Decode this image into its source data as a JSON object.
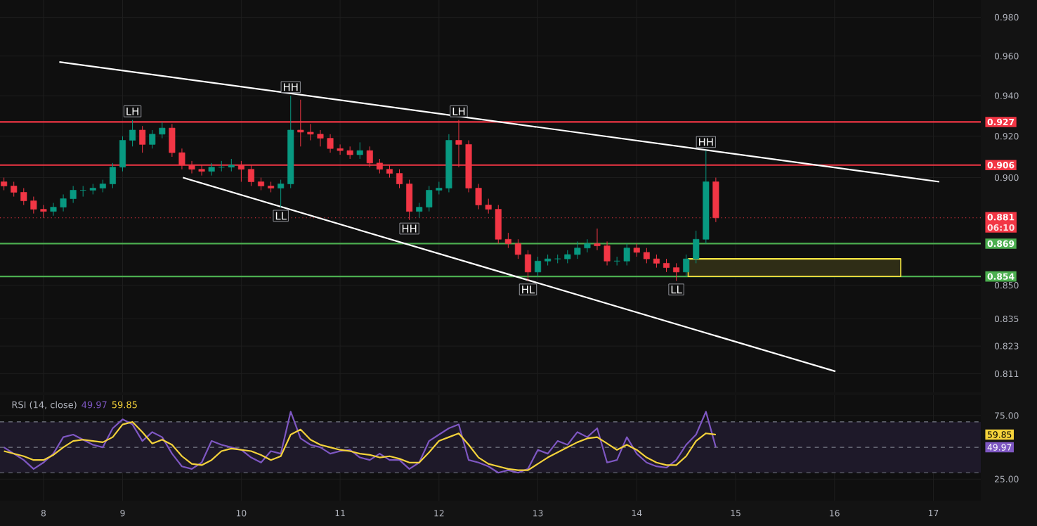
{
  "chart_data": [
    {
      "type": "candlestick",
      "x": [
        7.6,
        7.7,
        7.8,
        7.9,
        8.0,
        8.1,
        8.2,
        8.3,
        8.4,
        8.5,
        8.6,
        8.7,
        8.8,
        8.9,
        9.0,
        9.1,
        9.2,
        9.3,
        9.4,
        9.5,
        9.6,
        9.7,
        9.8,
        9.9,
        10.0,
        10.1,
        10.2,
        10.3,
        10.4,
        10.5,
        10.6,
        10.7,
        10.8,
        10.9,
        11.0,
        11.1,
        11.2,
        11.3,
        11.4,
        11.5,
        11.6,
        11.7,
        11.8,
        11.9,
        12.0,
        12.1,
        12.2,
        12.3,
        12.4,
        12.5,
        12.6,
        12.7,
        12.8,
        12.9,
        13.0,
        13.1,
        13.2,
        13.3,
        13.4,
        13.5,
        13.6,
        13.7,
        13.8,
        13.9,
        14.0,
        14.1,
        14.2,
        14.3,
        14.4,
        14.5,
        14.6,
        14.7,
        14.8
      ],
      "ohlc": [
        [
          0.898,
          0.9,
          0.894,
          0.896
        ],
        [
          0.896,
          0.898,
          0.891,
          0.893
        ],
        [
          0.893,
          0.895,
          0.887,
          0.889
        ],
        [
          0.889,
          0.891,
          0.883,
          0.885
        ],
        [
          0.885,
          0.887,
          0.881,
          0.884
        ],
        [
          0.884,
          0.888,
          0.882,
          0.886
        ],
        [
          0.886,
          0.892,
          0.884,
          0.89
        ],
        [
          0.89,
          0.896,
          0.888,
          0.894
        ],
        [
          0.894,
          0.896,
          0.891,
          0.894
        ],
        [
          0.894,
          0.897,
          0.892,
          0.895
        ],
        [
          0.895,
          0.899,
          0.893,
          0.897
        ],
        [
          0.897,
          0.907,
          0.895,
          0.905
        ],
        [
          0.905,
          0.92,
          0.903,
          0.918
        ],
        [
          0.918,
          0.928,
          0.915,
          0.923
        ],
        [
          0.923,
          0.925,
          0.912,
          0.916
        ],
        [
          0.916,
          0.923,
          0.914,
          0.921
        ],
        [
          0.921,
          0.927,
          0.919,
          0.924
        ],
        [
          0.924,
          0.926,
          0.91,
          0.912
        ],
        [
          0.912,
          0.914,
          0.904,
          0.906
        ],
        [
          0.906,
          0.908,
          0.902,
          0.904
        ],
        [
          0.904,
          0.906,
          0.901,
          0.903
        ],
        [
          0.903,
          0.907,
          0.901,
          0.905
        ],
        [
          0.905,
          0.908,
          0.903,
          0.905
        ],
        [
          0.905,
          0.909,
          0.903,
          0.906
        ],
        [
          0.906,
          0.908,
          0.898,
          0.904
        ],
        [
          0.904,
          0.906,
          0.896,
          0.898
        ],
        [
          0.898,
          0.9,
          0.894,
          0.896
        ],
        [
          0.896,
          0.898,
          0.893,
          0.895
        ],
        [
          0.895,
          0.899,
          0.886,
          0.897
        ],
        [
          0.897,
          0.94,
          0.895,
          0.923
        ],
        [
          0.923,
          0.938,
          0.915,
          0.922
        ],
        [
          0.922,
          0.926,
          0.918,
          0.921
        ],
        [
          0.921,
          0.923,
          0.915,
          0.919
        ],
        [
          0.919,
          0.921,
          0.912,
          0.914
        ],
        [
          0.914,
          0.916,
          0.911,
          0.913
        ],
        [
          0.913,
          0.915,
          0.909,
          0.911
        ],
        [
          0.911,
          0.917,
          0.909,
          0.913
        ],
        [
          0.913,
          0.915,
          0.905,
          0.907
        ],
        [
          0.907,
          0.909,
          0.902,
          0.904
        ],
        [
          0.904,
          0.906,
          0.9,
          0.902
        ],
        [
          0.902,
          0.904,
          0.895,
          0.897
        ],
        [
          0.897,
          0.899,
          0.88,
          0.884
        ],
        [
          0.884,
          0.888,
          0.881,
          0.886
        ],
        [
          0.886,
          0.896,
          0.884,
          0.894
        ],
        [
          0.894,
          0.898,
          0.892,
          0.895
        ],
        [
          0.895,
          0.921,
          0.893,
          0.918
        ],
        [
          0.918,
          0.928,
          0.905,
          0.916
        ],
        [
          0.916,
          0.918,
          0.893,
          0.895
        ],
        [
          0.895,
          0.897,
          0.885,
          0.887
        ],
        [
          0.887,
          0.89,
          0.883,
          0.885
        ],
        [
          0.885,
          0.887,
          0.869,
          0.871
        ],
        [
          0.871,
          0.874,
          0.867,
          0.869
        ],
        [
          0.869,
          0.871,
          0.862,
          0.864
        ],
        [
          0.864,
          0.866,
          0.852,
          0.856
        ],
        [
          0.856,
          0.863,
          0.854,
          0.861
        ],
        [
          0.861,
          0.864,
          0.859,
          0.862
        ],
        [
          0.862,
          0.864,
          0.86,
          0.862
        ],
        [
          0.862,
          0.866,
          0.86,
          0.864
        ],
        [
          0.864,
          0.87,
          0.862,
          0.867
        ],
        [
          0.867,
          0.871,
          0.865,
          0.869
        ],
        [
          0.869,
          0.876,
          0.866,
          0.868
        ],
        [
          0.868,
          0.87,
          0.859,
          0.861
        ],
        [
          0.861,
          0.863,
          0.859,
          0.861
        ],
        [
          0.861,
          0.869,
          0.859,
          0.867
        ],
        [
          0.867,
          0.869,
          0.863,
          0.865
        ],
        [
          0.865,
          0.867,
          0.86,
          0.862
        ],
        [
          0.862,
          0.864,
          0.858,
          0.86
        ],
        [
          0.86,
          0.862,
          0.856,
          0.858
        ],
        [
          0.858,
          0.86,
          0.852,
          0.856
        ],
        [
          0.856,
          0.864,
          0.854,
          0.862
        ],
        [
          0.862,
          0.875,
          0.86,
          0.871
        ],
        [
          0.871,
          0.913,
          0.869,
          0.898
        ],
        [
          0.898,
          0.9,
          0.879,
          0.881
        ]
      ],
      "series": [
        {
          "type": "line",
          "color": "#ffffff",
          "x": [
            8.16,
            17.06
          ],
          "values": [
            0.957,
            0.898
          ]
        },
        {
          "type": "line",
          "color": "#ffffff",
          "x": [
            9.41,
            16.01
          ],
          "values": [
            0.9,
            0.812
          ]
        },
        {
          "type": "line",
          "color": "#f5e642",
          "x": [
            14.52,
            16.67
          ],
          "values": [
            0.862,
            0.862
          ],
          "lower": [
            0.854,
            0.854
          ],
          "upper": [
            0.862,
            0.862
          ]
        }
      ],
      "xlim": [
        7.56,
        17.48
      ],
      "xticks": [
        8,
        {
          "value": 8.8,
          "label": null
        },
        10,
        11,
        12,
        13,
        14,
        15,
        16,
        17
      ],
      "ylim": [
        0.803,
        0.989
      ],
      "yticks": [
        {
          "value": 0.98,
          "label": "0.980"
        },
        {
          "value": 0.96,
          "label": "0.960"
        },
        {
          "value": 0.94,
          "label": "0.940"
        },
        {
          "value": 0.92,
          "label": "0.920"
        },
        {
          "value": 0.9,
          "label": "0.900"
        },
        {
          "value": 0.85,
          "label": "0.850"
        },
        0.835,
        0.823,
        0.811
      ],
      "log": "y",
      "grid": true,
      "tick_labels": "y",
      "ref_lines": [
        {
          "axis": "y",
          "value": 0.927,
          "label": "0.927",
          "color": "#f23645"
        },
        {
          "axis": "y",
          "value": 0.906,
          "label": "0.906",
          "color": "#f23645"
        },
        {
          "axis": "y",
          "value": 0.881,
          "label": "0.881",
          "color": "#f23645",
          "line_style": "dotted"
        },
        {
          "axis": "y",
          "value": 0.869,
          "label": "0.869",
          "color": "#4caf50"
        },
        {
          "axis": "y",
          "value": 0.854,
          "label": "0.854",
          "color": "#4caf50"
        }
      ],
      "annotations": [
        {
          "text": "LH",
          "x": 8.9,
          "y": 0.928
        },
        {
          "text": "HH",
          "x": 10.5,
          "y": 0.94
        },
        {
          "text": "LL",
          "x": 10.4,
          "y": 0.886
        },
        {
          "text": "LH",
          "x": 12.2,
          "y": 0.928
        },
        {
          "text": "HH",
          "x": 11.7,
          "y": 0.88
        },
        {
          "text": "HL",
          "x": 12.9,
          "y": 0.852
        },
        {
          "text": "LL",
          "x": 14.4,
          "y": 0.852
        },
        {
          "text": "HH",
          "x": 14.7,
          "y": 0.913
        },
        "06:10"
      ]
    },
    {
      "type": "line",
      "title": "RSI (14, close)",
      "x": [
        7.6,
        7.7,
        7.8,
        7.9,
        8.0,
        8.1,
        8.2,
        8.3,
        8.4,
        8.5,
        8.6,
        8.7,
        8.8,
        8.9,
        9.0,
        9.1,
        9.2,
        9.3,
        9.4,
        9.5,
        9.6,
        9.7,
        9.8,
        9.9,
        10.0,
        10.1,
        10.2,
        10.3,
        10.4,
        10.5,
        10.6,
        10.7,
        10.8,
        10.9,
        11.0,
        11.1,
        11.2,
        11.3,
        11.4,
        11.5,
        11.6,
        11.7,
        11.8,
        11.9,
        12.0,
        12.1,
        12.2,
        12.3,
        12.4,
        12.5,
        12.6,
        12.7,
        12.8,
        12.9,
        13.0,
        13.1,
        13.2,
        13.3,
        13.4,
        13.5,
        13.6,
        13.7,
        13.8,
        13.9,
        14.0,
        14.1,
        14.2,
        14.3,
        14.4,
        14.5,
        14.6,
        14.7,
        14.8
      ],
      "series": [
        {
          "color": "#7e57c2",
          "values": [
            50,
            45,
            40,
            33,
            38,
            45,
            58,
            60,
            56,
            52,
            50,
            65,
            72,
            68,
            55,
            62,
            58,
            45,
            35,
            33,
            38,
            55,
            52,
            50,
            48,
            42,
            38,
            47,
            45,
            78,
            57,
            52,
            50,
            45,
            47,
            48,
            42,
            40,
            45,
            40,
            40,
            33,
            38,
            55,
            60,
            65,
            68,
            40,
            38,
            35,
            30,
            32,
            30,
            33,
            48,
            45,
            55,
            52,
            62,
            58,
            65,
            38,
            40,
            58,
            45,
            38,
            35,
            34,
            40,
            52,
            60,
            78,
            50
          ]
        },
        {
          "color": "#f5d33b",
          "values": [
            47,
            45,
            43,
            40,
            40,
            44,
            50,
            55,
            56,
            55,
            54,
            58,
            68,
            70,
            62,
            53,
            56,
            52,
            43,
            37,
            36,
            40,
            47,
            49,
            48,
            47,
            44,
            40,
            43,
            60,
            64,
            56,
            52,
            50,
            48,
            47,
            45,
            44,
            42,
            43,
            41,
            38,
            38,
            46,
            55,
            58,
            61,
            52,
            42,
            37,
            35,
            33,
            32,
            32,
            37,
            42,
            46,
            50,
            54,
            57,
            58,
            53,
            48,
            52,
            48,
            42,
            38,
            36,
            36,
            43,
            55,
            61,
            60
          ]
        }
      ],
      "xlim": [
        7.56,
        17.48
      ],
      "xticks": [
        8,
        {
          "value": 8.8,
          "label": "9"
        },
        10,
        11,
        12,
        13,
        14,
        15,
        16,
        17
      ],
      "ylim": [
        8,
        91
      ],
      "yticks": [
        {
          "value": 25,
          "label": "25.00"
        },
        {
          "value": 75,
          "label": "75.00"
        }
      ],
      "grid": true,
      "ref_lines": [
        {
          "axis": "y",
          "value": 70,
          "color": "#787b86",
          "line_style": "dashed"
        },
        {
          "axis": "y",
          "value": 50,
          "color": "#787b86",
          "line_style": "dashed"
        },
        {
          "axis": "y",
          "value": 30,
          "color": "#787b86",
          "line_style": "dashed"
        }
      ],
      "bands": [
        {
          "axis": "y",
          "from": 30,
          "to": 70,
          "color": "#1e1929"
        }
      ],
      "annotations": [
        "49.97",
        "59.85",
        "49.97",
        "59.85"
      ]
    }
  ]
}
